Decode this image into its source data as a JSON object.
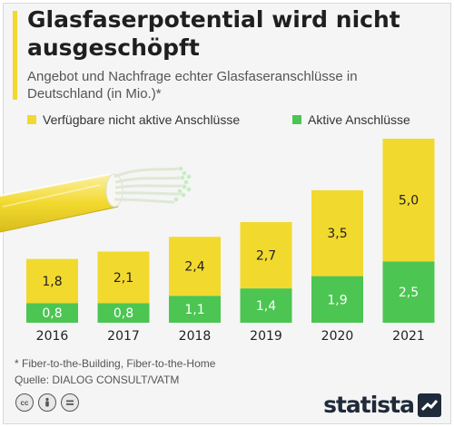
{
  "title": "Glasfaserpotential wird nicht ausgeschöpft",
  "subtitle": "Angebot und Nachfrage echter Glasfaseranschlüsse in Deutschland (in Mio.)*",
  "colors": {
    "inactive": "#f2d92e",
    "active": "#4cc552",
    "accent": "#f2d92e"
  },
  "legend": [
    {
      "label": "Verfügbare nicht aktive Anschlüsse",
      "color": "#f2d92e"
    },
    {
      "label": "Aktive Anschlüsse",
      "color": "#4cc552"
    }
  ],
  "chart_data": {
    "type": "bar",
    "stacked": true,
    "categories": [
      "2016",
      "2017",
      "2018",
      "2019",
      "2020",
      "2021"
    ],
    "series": [
      {
        "name": "Aktive Anschlüsse",
        "values": [
          0.8,
          0.8,
          1.1,
          1.4,
          1.9,
          2.5
        ],
        "labels": [
          "0,8",
          "0,8",
          "1,1",
          "1,4",
          "1,9",
          "2,5"
        ]
      },
      {
        "name": "Verfügbare nicht aktive Anschlüsse",
        "values": [
          1.8,
          2.1,
          2.4,
          2.7,
          3.5,
          5.0
        ],
        "labels": [
          "1,8",
          "2,1",
          "2,4",
          "2,7",
          "3,5",
          "5,0"
        ]
      }
    ],
    "title": "Glasfaserpotential wird nicht ausgeschöpft",
    "xlabel": "",
    "ylabel": "",
    "ylim": [
      0,
      7.5
    ],
    "grid": false,
    "legend_position": "top"
  },
  "footnote": "* Fiber-to-the-Building, Fiber-to-the-Home",
  "source": "Quelle: DIALOG CONSULT/VATM",
  "license_icons": [
    "creative-commons-icon",
    "attribution-icon",
    "no-derivatives-icon"
  ],
  "brand": "statista"
}
